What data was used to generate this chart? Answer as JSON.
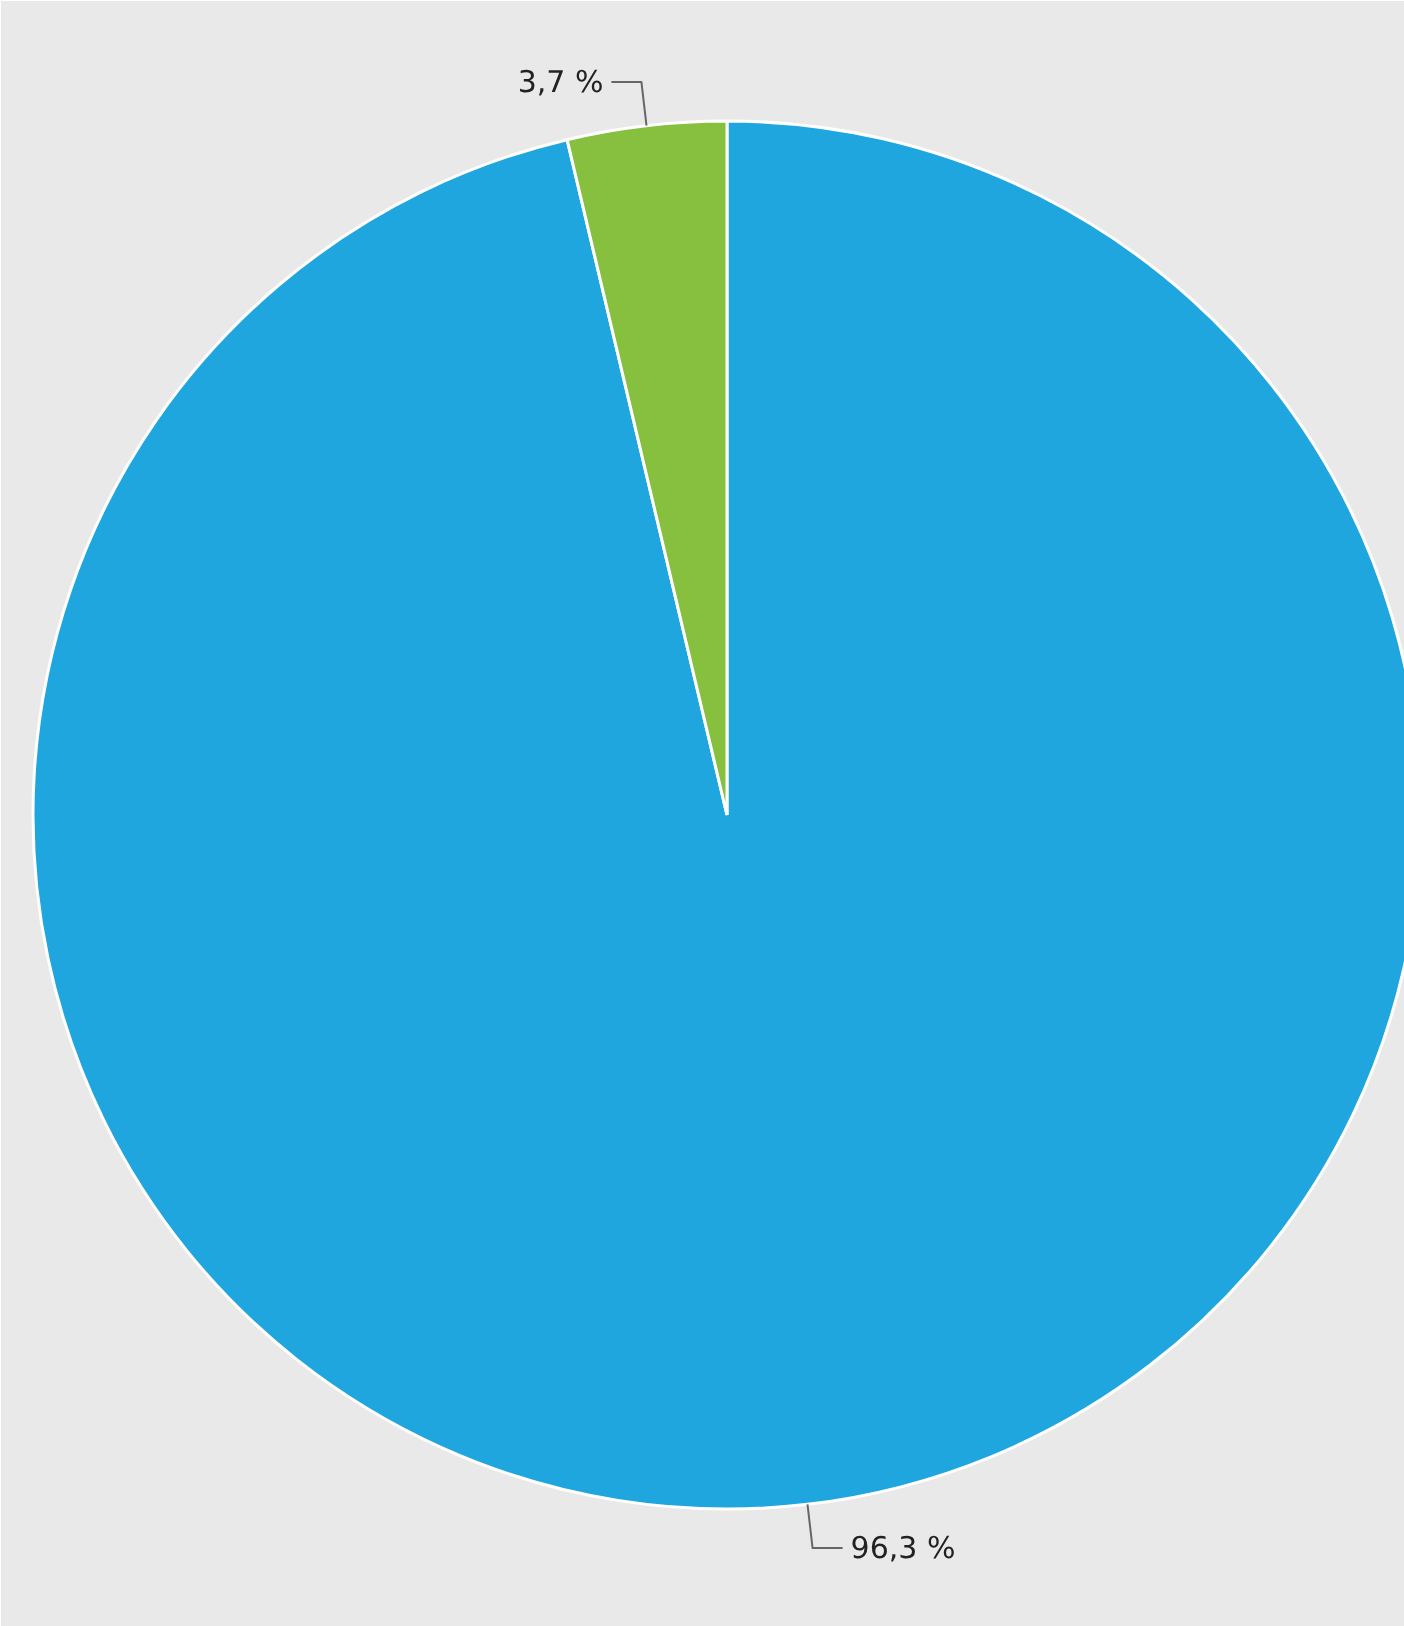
{
  "chart_data": {
    "type": "pie",
    "categories": [
      null,
      null
    ],
    "values": [
      96.3,
      3.7
    ],
    "colors": [
      "#20a6de",
      "#86c03e"
    ],
    "value_labels": [
      "96,3 %",
      "3,7 %"
    ]
  }
}
